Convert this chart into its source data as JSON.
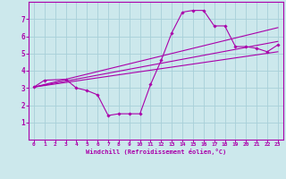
{
  "bg_color": "#cce8ec",
  "grid_color": "#a8d0d8",
  "line_color": "#aa00aa",
  "spine_color": "#aa00aa",
  "xlabel": "Windchill (Refroidissement éolien,°C)",
  "xlim": [
    -0.5,
    23.5
  ],
  "ylim": [
    0,
    8
  ],
  "xticks": [
    0,
    1,
    2,
    3,
    4,
    5,
    6,
    7,
    8,
    9,
    10,
    11,
    12,
    13,
    14,
    15,
    16,
    17,
    18,
    19,
    20,
    21,
    22,
    23
  ],
  "yticks": [
    1,
    2,
    3,
    4,
    5,
    6,
    7
  ],
  "line1_x": [
    0,
    1,
    3,
    4,
    5,
    6,
    7,
    8,
    9,
    10,
    11,
    12,
    13,
    14,
    15,
    16,
    17,
    18,
    19,
    20,
    21,
    22,
    23
  ],
  "line1_y": [
    3.05,
    3.45,
    3.5,
    3.0,
    2.85,
    2.6,
    1.4,
    1.5,
    1.5,
    1.5,
    3.2,
    4.6,
    6.2,
    7.4,
    7.5,
    7.5,
    6.6,
    6.6,
    5.4,
    5.4,
    5.3,
    5.1,
    5.5
  ],
  "line2_x": [
    0,
    23
  ],
  "line2_y": [
    3.05,
    6.5
  ],
  "line3_x": [
    0,
    23
  ],
  "line3_y": [
    3.05,
    5.7
  ],
  "line4_x": [
    0,
    23
  ],
  "line4_y": [
    3.05,
    5.1
  ]
}
